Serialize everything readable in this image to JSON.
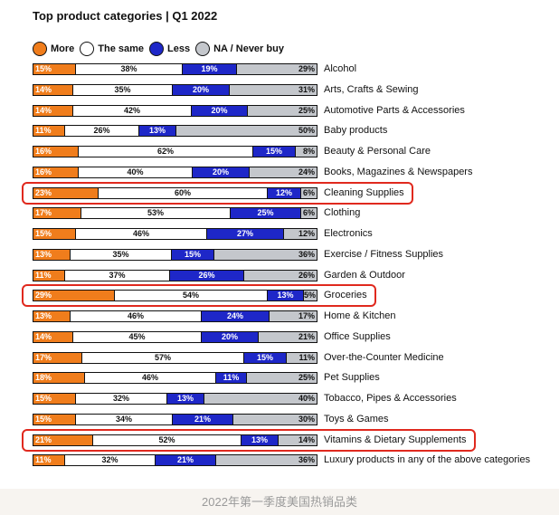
{
  "title": "Top product categories | Q1 2022",
  "legend": [
    {
      "label": "More",
      "color": "#f07d1c"
    },
    {
      "label": "The same",
      "color": "#ffffff"
    },
    {
      "label": "Less",
      "color": "#1e27c8"
    },
    {
      "label": "NA / Never buy",
      "color": "#c4c7cc"
    }
  ],
  "footer_caption": "2022年第一季度美国热销品类",
  "chart_data": {
    "type": "bar",
    "stacked": true,
    "orientation": "horizontal",
    "title": "Top product categories | Q1 2022",
    "xlim": [
      0,
      100
    ],
    "categories": [
      "Alcohol",
      "Arts, Crafts & Sewing",
      "Automotive Parts & Accessories",
      "Baby products",
      "Beauty & Personal Care",
      "Books, Magazines & Newspapers",
      "Cleaning Supplies",
      "Clothing",
      "Electronics",
      "Exercise / Fitness Supplies",
      "Garden & Outdoor",
      "Groceries",
      "Home & Kitchen",
      "Office Supplies",
      "Over-the-Counter Medicine",
      "Pet Supplies",
      "Tobacco, Pipes & Accessories",
      "Toys & Games",
      "Vitamins & Dietary Supplements",
      "Luxury products in any of the above categories"
    ],
    "series": [
      {
        "name": "More",
        "color": "#f07d1c",
        "values": [
          15,
          14,
          14,
          11,
          16,
          16,
          23,
          17,
          15,
          13,
          11,
          29,
          13,
          14,
          17,
          18,
          15,
          15,
          21,
          11
        ]
      },
      {
        "name": "The same",
        "color": "#ffffff",
        "values": [
          38,
          35,
          42,
          26,
          62,
          40,
          60,
          53,
          46,
          35,
          37,
          54,
          46,
          45,
          57,
          46,
          32,
          34,
          52,
          32
        ]
      },
      {
        "name": "Less",
        "color": "#1e27c8",
        "values": [
          19,
          20,
          20,
          13,
          15,
          20,
          12,
          25,
          27,
          15,
          26,
          13,
          24,
          20,
          15,
          11,
          13,
          21,
          13,
          21
        ]
      },
      {
        "name": "NA / Never buy",
        "color": "#c4c7cc",
        "values": [
          29,
          31,
          25,
          50,
          8,
          24,
          6,
          6,
          12,
          36,
          26,
          5,
          17,
          21,
          11,
          25,
          40,
          30,
          14,
          36
        ]
      }
    ],
    "highlighted_categories": [
      "Cleaning Supplies",
      "Groceries",
      "Vitamins & Dietary Supplements"
    ],
    "highlight_color": "#e0291e"
  }
}
